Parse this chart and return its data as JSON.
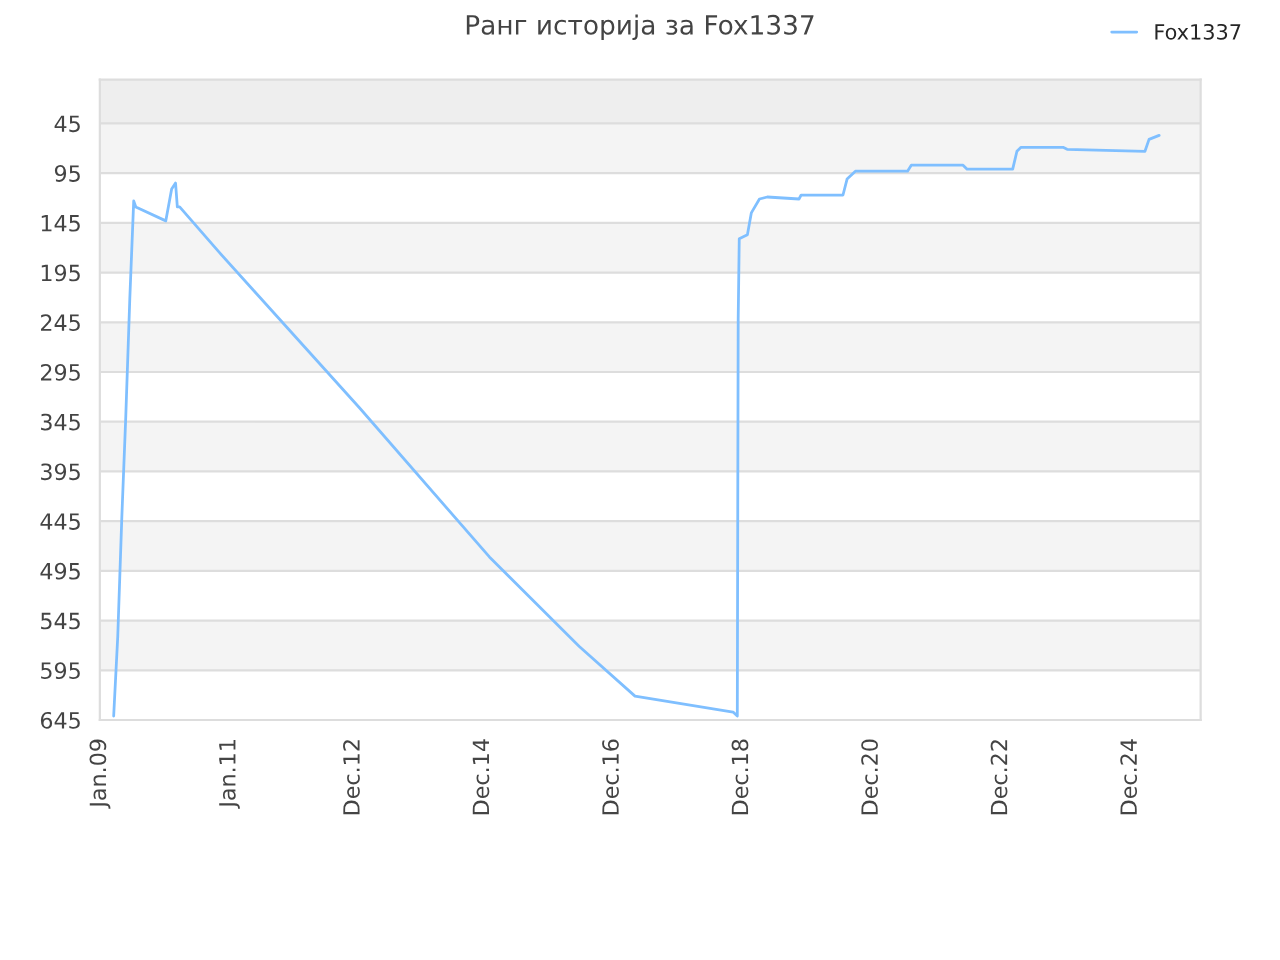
{
  "chart_data": {
    "type": "line",
    "title": "Ранг историја за Fox1337",
    "x": [
      "2009-03-20",
      "2009-04-12",
      "2009-05-05",
      "2009-05-27",
      "2009-06-19",
      "2009-07-11",
      "2009-07-23",
      "2010-01-08",
      "2010-02-10",
      "2010-03-04",
      "2010-03-14",
      "2010-03-27",
      "2010-11-07",
      "2013-01-04",
      "2015-01-07",
      "2016-05-28",
      "2017-04-07",
      "2018-10-12",
      "2018-11-05",
      "2018-11-10",
      "2018-11-16",
      "2019-01-01",
      "2019-01-23",
      "2019-03-10",
      "2019-04-23",
      "2019-10-19",
      "2019-10-31",
      "2020-06-23",
      "2020-07-16",
      "2020-09-01",
      "2021-06-22",
      "2021-07-13",
      "2022-05-01",
      "2022-05-24",
      "2023-02-05",
      "2023-03-01",
      "2023-03-24",
      "2023-11-16",
      "2023-12-09",
      "2025-02-20",
      "2025-03-15",
      "2025-05-11"
    ],
    "series": [
      {
        "name": "Fox1337",
        "color": "#7fbfff",
        "values": [
          641,
          561,
          441,
          341,
          221,
          123,
          129,
          143,
          111,
          105,
          129,
          129,
          175,
          331,
          481,
          571,
          621,
          637,
          641,
          241,
          161,
          157,
          135,
          121,
          119,
          121,
          117,
          117,
          101,
          93,
          93,
          87,
          87,
          91,
          91,
          73,
          69,
          69,
          71,
          73,
          61,
          57
        ]
      }
    ],
    "xlim": [
      "2009-01-01",
      "2025-12-31"
    ],
    "xticks": [
      {
        "value": "2009-01-01",
        "label": "Jan.09"
      },
      {
        "value": "2011-01-01",
        "label": "Jan.11"
      },
      {
        "value": "2012-12-01",
        "label": "Dec.12"
      },
      {
        "value": "2014-12-01",
        "label": "Dec.14"
      },
      {
        "value": "2016-12-01",
        "label": "Dec.16"
      },
      {
        "value": "2018-12-01",
        "label": "Dec.18"
      },
      {
        "value": "2020-12-01",
        "label": "Dec.20"
      },
      {
        "value": "2022-12-01",
        "label": "Dec.22"
      },
      {
        "value": "2024-12-01",
        "label": "Dec.24"
      }
    ],
    "ylim": [
      645,
      1
    ],
    "yticks": [
      45,
      95,
      145,
      195,
      245,
      295,
      345,
      395,
      445,
      495,
      545,
      595,
      645
    ],
    "bands": [
      {
        "axis": "y",
        "from": 1,
        "to": 45,
        "color": "#eeeeee"
      },
      {
        "axis": "y",
        "from": 45,
        "to": 95,
        "color": "#f4f4f4"
      },
      {
        "axis": "y",
        "from": 145,
        "to": 195,
        "color": "#f4f4f4"
      },
      {
        "axis": "y",
        "from": 245,
        "to": 295,
        "color": "#f4f4f4"
      },
      {
        "axis": "y",
        "from": 345,
        "to": 395,
        "color": "#f4f4f4"
      },
      {
        "axis": "y",
        "from": 445,
        "to": 495,
        "color": "#f4f4f4"
      },
      {
        "axis": "y",
        "from": 545,
        "to": 595,
        "color": "#f4f4f4"
      }
    ],
    "grid": "y",
    "legend": "top right",
    "marker": "none",
    "line_style": "solid"
  }
}
